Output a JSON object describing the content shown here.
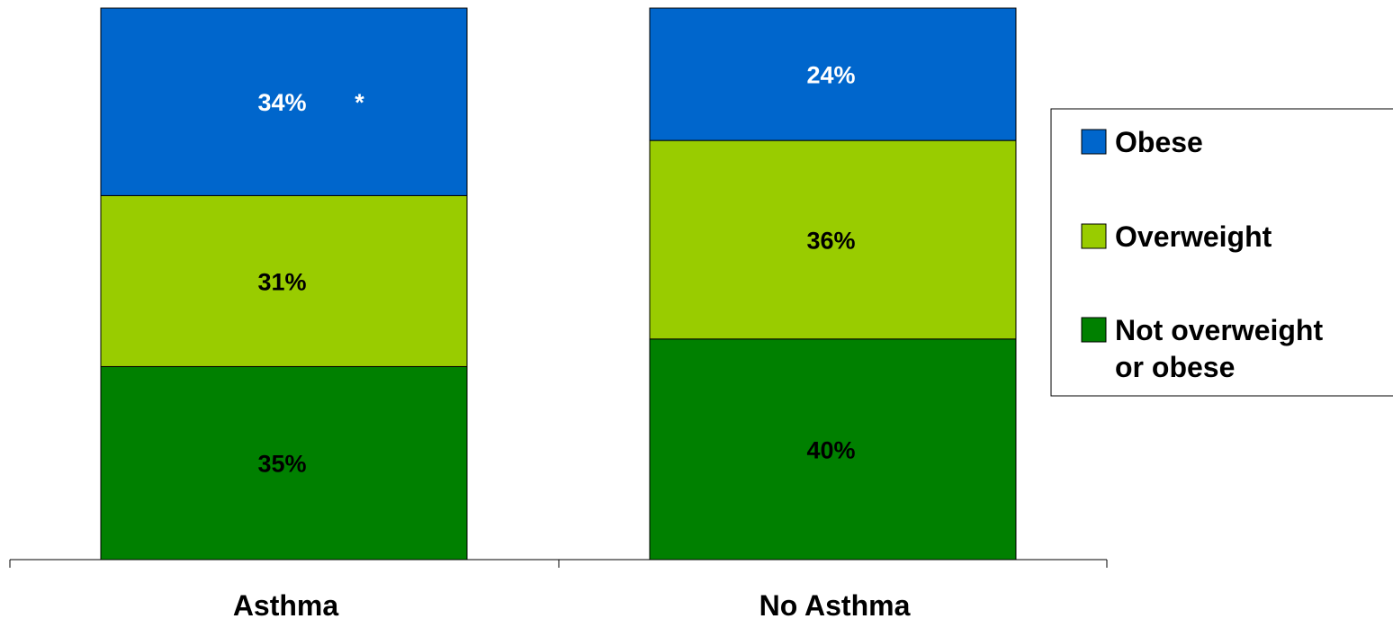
{
  "chart_data": {
    "type": "stacked-bar",
    "categories": [
      "Asthma",
      "No Asthma"
    ],
    "series": [
      {
        "name": "Not overweight or obese",
        "legend_lines": [
          "Not overweight",
          "or obese"
        ],
        "values": [
          35,
          40
        ],
        "labels": [
          "35%",
          "40%"
        ],
        "color": "#008000",
        "label_color": "#000000"
      },
      {
        "name": "Overweight",
        "legend_lines": [
          "Overweight"
        ],
        "values": [
          31,
          36
        ],
        "labels": [
          "31%",
          "36%"
        ],
        "color": "#99CC00",
        "label_color": "#000000"
      },
      {
        "name": "Obese",
        "legend_lines": [
          "Obese"
        ],
        "values": [
          34,
          24
        ],
        "labels": [
          "34%",
          "24%"
        ],
        "color": "#0066CC",
        "label_color": "#ffffff"
      }
    ],
    "annotations": [
      {
        "category": "Asthma",
        "series": "Obese",
        "text": "*"
      }
    ],
    "ylim": [
      0,
      100
    ],
    "grid": false,
    "legend": "right",
    "legend_order": [
      "Obese",
      "Overweight",
      "Not overweight or obese"
    ],
    "title": "",
    "xlabel": "",
    "ylabel": ""
  }
}
